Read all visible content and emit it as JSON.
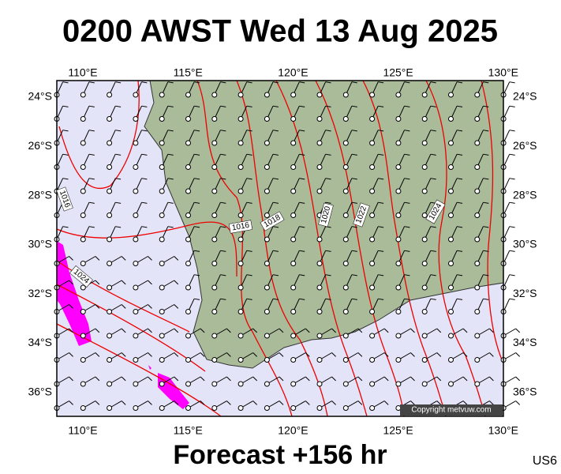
{
  "header": {
    "title": "0200 AWST Wed 13 Aug 2025"
  },
  "lon_labels": [
    "110°E",
    "115°E",
    "120°E",
    "125°E",
    "130°E"
  ],
  "lat_labels": [
    "24°S",
    "26°S",
    "28°S",
    "30°S",
    "32°S",
    "34°S",
    "36°S"
  ],
  "isobar_labels": [
    "1016",
    "1016",
    "1018",
    "1020",
    "1022",
    "1024",
    "1024"
  ],
  "footer": "Forecast +156 hr",
  "copyright": "Copyright metvuw.com",
  "code": "US6"
}
